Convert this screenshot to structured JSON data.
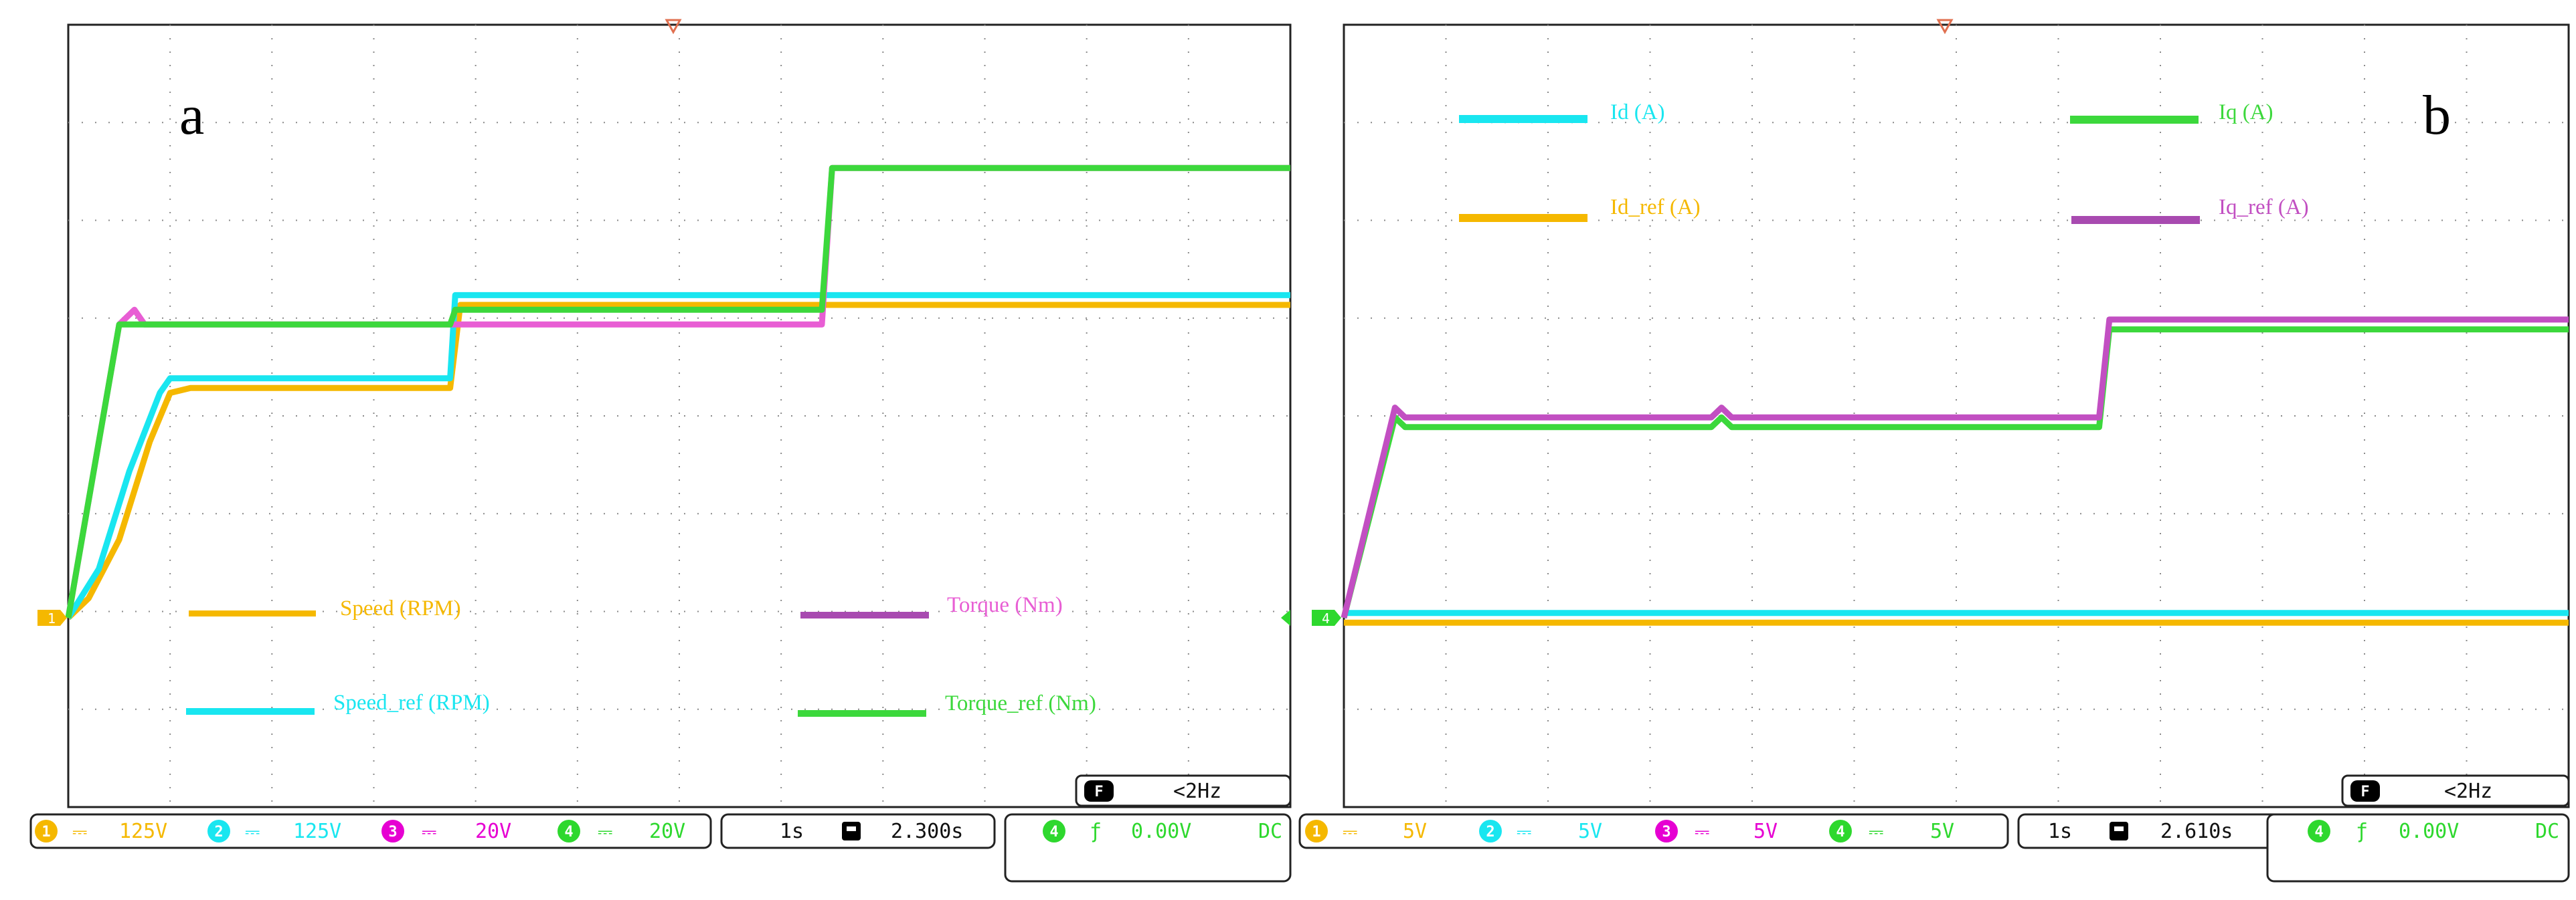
{
  "chart_data": [
    {
      "type": "line",
      "panel_label": "a",
      "x_range": [
        0,
        12
      ],
      "y_range": [
        0,
        6
      ],
      "grid": true,
      "trigger_level": "1",
      "series": [
        {
          "name": "Speed (RPM)",
          "color": "#f5b800",
          "x": [
            0.0,
            0.2,
            0.5,
            0.8,
            1.0,
            1.2,
            2.6,
            3.75,
            3.85,
            7.4,
            9.1,
            12.0
          ],
          "y": [
            0.0,
            0.2,
            0.8,
            1.8,
            2.3,
            2.35,
            2.35,
            2.35,
            3.2,
            3.2,
            3.2,
            3.2
          ]
        },
        {
          "name": "Speed_ref (RPM)",
          "color": "#19e6f0",
          "x": [
            0.0,
            0.3,
            0.6,
            0.9,
            1.0,
            3.75,
            3.8,
            12.0
          ],
          "y": [
            0.0,
            0.5,
            1.5,
            2.3,
            2.45,
            2.45,
            3.3,
            3.3
          ]
        },
        {
          "name": "Torque (Nm)",
          "color": "#e85ed4",
          "x": [
            0.0,
            0.5,
            0.65,
            0.75,
            0.85,
            3.75,
            3.8,
            7.4,
            7.5,
            12.0
          ],
          "y": [
            0.0,
            3.0,
            3.15,
            3.0,
            3.0,
            3.0,
            3.0,
            3.0,
            4.6,
            4.6
          ]
        },
        {
          "name": "Torque_ref (Nm)",
          "color": "#3cd83c",
          "x": [
            0.0,
            0.5,
            0.6,
            3.75,
            3.8,
            7.4,
            7.5,
            12.0
          ],
          "y": [
            0.0,
            3.0,
            3.0,
            3.0,
            3.15,
            3.15,
            4.6,
            4.6
          ]
        }
      ],
      "legend": [
        {
          "label": "Speed (RPM)",
          "color": "#f5b800",
          "swatch": "#f5b800"
        },
        {
          "label": "Torque (Nm)",
          "color": "#e85ed4",
          "swatch": "#a84ab0"
        },
        {
          "label": "Speed_ref (RPM)",
          "color": "#19e6f0",
          "swatch": "#19e6f0"
        },
        {
          "label": "Torque_ref (Nm)",
          "color": "#3cd83c",
          "swatch": "#3cd83c"
        }
      ],
      "status": {
        "freq_label": "<2Hz",
        "channels": [
          {
            "num": "1",
            "scale": "125V",
            "color": "#f5b800"
          },
          {
            "num": "2",
            "scale": "125V",
            "color": "#19e6f0"
          },
          {
            "num": "3",
            "scale": "20V",
            "color": "#e600d2"
          },
          {
            "num": "4",
            "scale": "20V",
            "color": "#2ed82e"
          }
        ],
        "timebase": "1s",
        "position": "2.300s",
        "trig_channel": "4",
        "trig_level": "0.00V",
        "coupling": "DC"
      }
    },
    {
      "type": "line",
      "panel_label": "b",
      "x_range": [
        0,
        12
      ],
      "y_range": [
        0,
        6
      ],
      "grid": true,
      "trigger_level": "4",
      "series": [
        {
          "name": "Id (A)",
          "color": "#19e6f0",
          "x": [
            0.0,
            12.0
          ],
          "y": [
            0.05,
            0.05
          ]
        },
        {
          "name": "Id_ref (A)",
          "color": "#f5b800",
          "x": [
            0.0,
            12.0
          ],
          "y": [
            -0.05,
            -0.05
          ]
        },
        {
          "name": "Iq (A)",
          "color": "#3cd83c",
          "x": [
            0.0,
            0.5,
            0.6,
            3.6,
            3.7,
            3.8,
            7.4,
            7.5,
            12.0
          ],
          "y": [
            0.0,
            2.05,
            1.95,
            1.95,
            2.05,
            1.95,
            1.95,
            2.95,
            2.95
          ]
        },
        {
          "name": "Iq_ref (A)",
          "color": "#c24fc2",
          "x": [
            0.0,
            0.5,
            0.6,
            3.6,
            3.7,
            3.8,
            7.4,
            7.5,
            12.0
          ],
          "y": [
            0.0,
            2.15,
            2.05,
            2.05,
            2.15,
            2.05,
            2.05,
            3.05,
            3.05
          ]
        }
      ],
      "legend": [
        {
          "label": "Id (A)",
          "color": "#19e6f0",
          "swatch": "#19e6f0"
        },
        {
          "label": "Iq (A)",
          "color": "#3cd83c",
          "swatch": "#3cd83c"
        },
        {
          "label": "Id_ref (A)",
          "color": "#f5b800",
          "swatch": "#f5b800"
        },
        {
          "label": "Iq_ref (A)",
          "color": "#c24fc2",
          "swatch": "#a84ab0"
        }
      ],
      "status": {
        "freq_label": "<2Hz",
        "channels": [
          {
            "num": "1",
            "scale": "5V",
            "color": "#f5b800"
          },
          {
            "num": "2",
            "scale": "5V",
            "color": "#19e6f0"
          },
          {
            "num": "3",
            "scale": "5V",
            "color": "#e600d2"
          },
          {
            "num": "4",
            "scale": "5V",
            "color": "#2ed82e"
          }
        ],
        "timebase": "1s",
        "position": "2.610s",
        "trig_channel": "4",
        "trig_level": "0.00V",
        "coupling": "DC"
      }
    }
  ]
}
